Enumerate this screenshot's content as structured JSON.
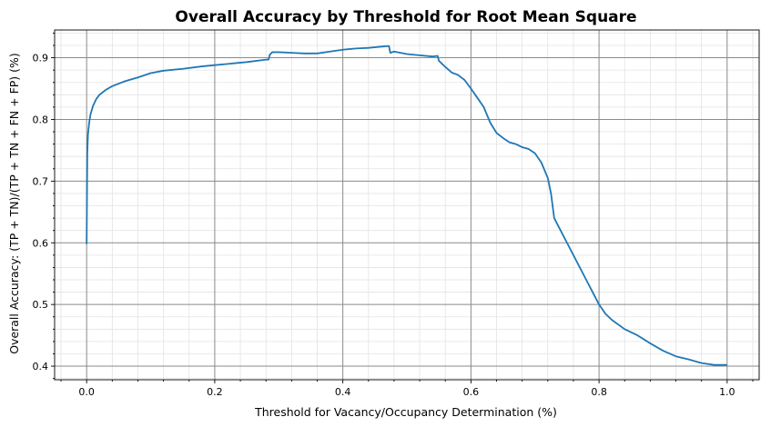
{
  "chart_data": {
    "type": "line",
    "title": "Overall Accuracy by Threshold for Root Mean Square",
    "xlabel": "Threshold for Vacancy/Occupancy Determination (%)",
    "ylabel": "Overall Accuracy: (TP + TN)/(TP + TN + FN + FP) (%)",
    "xlim": [
      -0.05,
      1.05
    ],
    "ylim": [
      0.378,
      0.945
    ],
    "xticks": [
      0.0,
      0.2,
      0.4,
      0.6,
      0.8,
      1.0
    ],
    "xtick_labels": [
      "0.0",
      "0.2",
      "0.4",
      "0.6",
      "0.8",
      "1.0"
    ],
    "yticks": [
      0.4,
      0.5,
      0.6,
      0.7,
      0.8,
      0.9
    ],
    "ytick_labels": [
      "0.4",
      "0.5",
      "0.6",
      "0.7",
      "0.8",
      "0.9"
    ],
    "grid": "major and minor",
    "color": "#1f77b4",
    "series": [
      {
        "x": [
          0.0,
          0.001,
          0.002,
          0.004,
          0.006,
          0.01,
          0.015,
          0.02,
          0.03,
          0.04,
          0.05,
          0.06,
          0.08,
          0.1,
          0.12,
          0.15,
          0.18,
          0.2,
          0.22,
          0.25,
          0.28,
          0.284,
          0.286,
          0.29,
          0.3,
          0.32,
          0.34,
          0.36,
          0.38,
          0.4,
          0.42,
          0.44,
          0.46,
          0.472,
          0.474,
          0.48,
          0.5,
          0.52,
          0.54,
          0.548,
          0.55,
          0.56,
          0.57,
          0.58,
          0.59,
          0.6,
          0.61,
          0.62,
          0.63,
          0.64,
          0.65,
          0.66,
          0.67,
          0.68,
          0.69,
          0.7,
          0.71,
          0.72,
          0.725,
          0.73,
          0.74,
          0.75,
          0.76,
          0.77,
          0.78,
          0.79,
          0.8,
          0.81,
          0.82,
          0.84,
          0.86,
          0.88,
          0.9,
          0.92,
          0.94,
          0.96,
          0.98,
          1.0
        ],
        "y": [
          0.598,
          0.745,
          0.775,
          0.795,
          0.808,
          0.822,
          0.833,
          0.84,
          0.848,
          0.854,
          0.858,
          0.862,
          0.868,
          0.875,
          0.879,
          0.882,
          0.886,
          0.888,
          0.89,
          0.893,
          0.897,
          0.897,
          0.905,
          0.909,
          0.909,
          0.908,
          0.907,
          0.907,
          0.91,
          0.913,
          0.915,
          0.916,
          0.918,
          0.919,
          0.908,
          0.91,
          0.906,
          0.904,
          0.902,
          0.903,
          0.895,
          0.885,
          0.876,
          0.872,
          0.864,
          0.85,
          0.835,
          0.82,
          0.795,
          0.778,
          0.77,
          0.763,
          0.76,
          0.755,
          0.752,
          0.745,
          0.73,
          0.705,
          0.68,
          0.64,
          0.62,
          0.6,
          0.58,
          0.56,
          0.54,
          0.52,
          0.5,
          0.485,
          0.475,
          0.46,
          0.45,
          0.437,
          0.425,
          0.416,
          0.411,
          0.405,
          0.402,
          0.402
        ]
      }
    ]
  }
}
